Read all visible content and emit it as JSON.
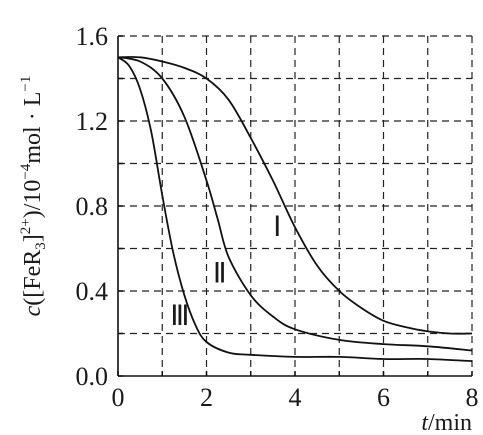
{
  "chart_data": {
    "type": "line",
    "x_ticks": [
      "0",
      "2",
      "4",
      "6",
      "8"
    ],
    "y_ticks": [
      "0.0",
      "0.4",
      "0.8",
      "1.2",
      "1.6"
    ],
    "xlim": [
      0,
      8
    ],
    "ylim": [
      0,
      1.6
    ],
    "grid": true,
    "x_label_italic": "t",
    "x_label_unit": "/min",
    "y_label": {
      "c": "c",
      "open": "([FeR",
      "sub": "3",
      "close": "]",
      "sup": "2+",
      "after": ")/10",
      "exp": "−4",
      "unit": "mol · L",
      "unit_exp": "−1"
    },
    "series": [
      {
        "name": "Ⅰ",
        "x": [
          0,
          0.5,
          1,
          1.5,
          2,
          2.5,
          3,
          3.5,
          4,
          4.5,
          5,
          5.5,
          6,
          6.5,
          7,
          7.5,
          8
        ],
        "y": [
          1.5,
          1.5,
          1.48,
          1.45,
          1.4,
          1.3,
          1.12,
          0.92,
          0.7,
          0.52,
          0.4,
          0.32,
          0.26,
          0.23,
          0.21,
          0.2,
          0.2
        ]
      },
      {
        "name": "Ⅱ",
        "x": [
          0,
          0.5,
          1,
          1.5,
          2,
          2.25,
          2.5,
          3,
          3.5,
          4,
          5,
          6,
          7,
          8
        ],
        "y": [
          1.5,
          1.48,
          1.4,
          1.22,
          0.92,
          0.74,
          0.56,
          0.38,
          0.28,
          0.22,
          0.17,
          0.15,
          0.14,
          0.12
        ]
      },
      {
        "name": "Ⅲ",
        "x": [
          0,
          0.25,
          0.5,
          0.75,
          1,
          1.25,
          1.5,
          1.75,
          2,
          2.5,
          3,
          4,
          5,
          6,
          7,
          8
        ],
        "y": [
          1.5,
          1.46,
          1.35,
          1.15,
          0.85,
          0.58,
          0.38,
          0.24,
          0.16,
          0.11,
          0.1,
          0.09,
          0.09,
          0.08,
          0.08,
          0.07
        ]
      }
    ],
    "curve_label_positions": [
      {
        "name": "Ⅰ",
        "x": 3.6,
        "y": 0.66
      },
      {
        "name": "Ⅱ",
        "x": 2.3,
        "y": 0.44
      },
      {
        "name": "Ⅲ",
        "x": 1.4,
        "y": 0.24
      }
    ]
  }
}
